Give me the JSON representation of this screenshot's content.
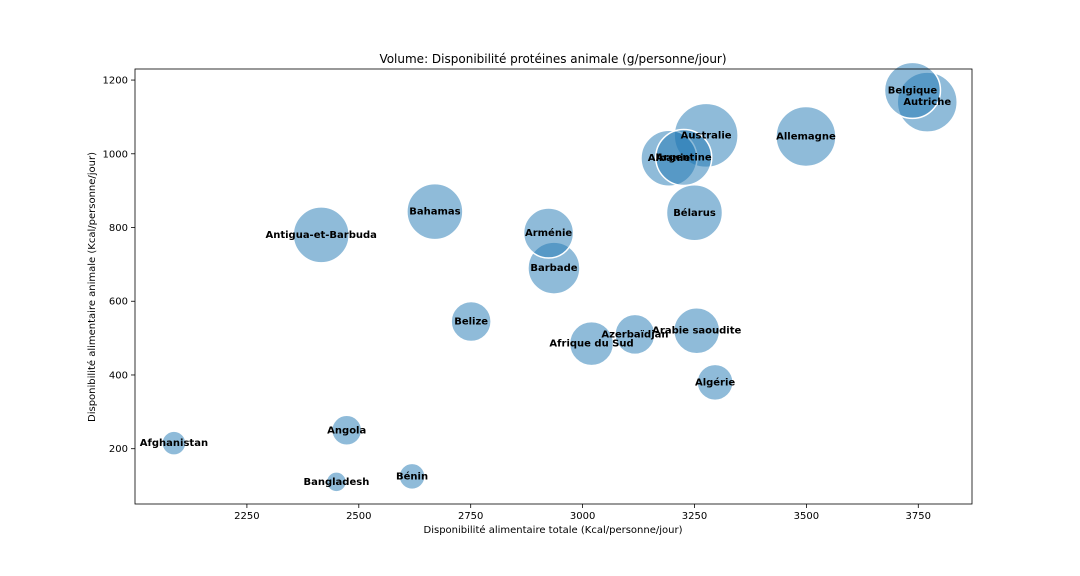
{
  "chart_data": {
    "type": "scatter",
    "title": "Volume: Disponibilité protéines animale (g/personne/jour)",
    "xlabel": "Disponibilité alimentaire totale (Kcal/personne/jour)",
    "ylabel": "Disponibilité alimentaire animale (Kcal/personne/jour)",
    "xlim": [
      2000,
      3870
    ],
    "ylim": [
      50,
      1230
    ],
    "xticks": [
      2250,
      2500,
      2750,
      3000,
      3250,
      3500,
      3750
    ],
    "yticks": [
      200,
      400,
      600,
      800,
      1000,
      1200
    ],
    "grid": false,
    "points": [
      {
        "label": "Afghanistan",
        "x": 2087,
        "y": 215,
        "size": 12
      },
      {
        "label": "Angola",
        "x": 2473,
        "y": 250,
        "size": 15
      },
      {
        "label": "Bangladesh",
        "x": 2450,
        "y": 110,
        "size": 10
      },
      {
        "label": "Bénin",
        "x": 2619,
        "y": 125,
        "size": 13
      },
      {
        "label": "Antigua-et-Barbuda",
        "x": 2416,
        "y": 780,
        "size": 28
      },
      {
        "label": "Bahamas",
        "x": 2670,
        "y": 843,
        "size": 28
      },
      {
        "label": "Belize",
        "x": 2751,
        "y": 545,
        "size": 20
      },
      {
        "label": "Arménie",
        "x": 2924,
        "y": 785,
        "size": 25
      },
      {
        "label": "Barbade",
        "x": 2936,
        "y": 690,
        "size": 26
      },
      {
        "label": "Afrique du Sud",
        "x": 3020,
        "y": 485,
        "size": 22
      },
      {
        "label": "Azerbaïdjan",
        "x": 3117,
        "y": 510,
        "size": 20
      },
      {
        "label": "Arabie saoudite",
        "x": 3255,
        "y": 520,
        "size": 23
      },
      {
        "label": "Algérie",
        "x": 3296,
        "y": 380,
        "size": 18
      },
      {
        "label": "Bélarus",
        "x": 3250,
        "y": 840,
        "size": 28
      },
      {
        "label": "Albanie",
        "x": 3193,
        "y": 988,
        "size": 28
      },
      {
        "label": "Argentine",
        "x": 3226,
        "y": 990,
        "size": 28
      },
      {
        "label": "Australie",
        "x": 3276,
        "y": 1050,
        "size": 32
      },
      {
        "label": "Allemagne",
        "x": 3499,
        "y": 1047,
        "size": 30
      },
      {
        "label": "Belgique",
        "x": 3737,
        "y": 1172,
        "size": 28
      },
      {
        "label": "Autriche",
        "x": 3770,
        "y": 1140,
        "size": 30
      }
    ]
  }
}
